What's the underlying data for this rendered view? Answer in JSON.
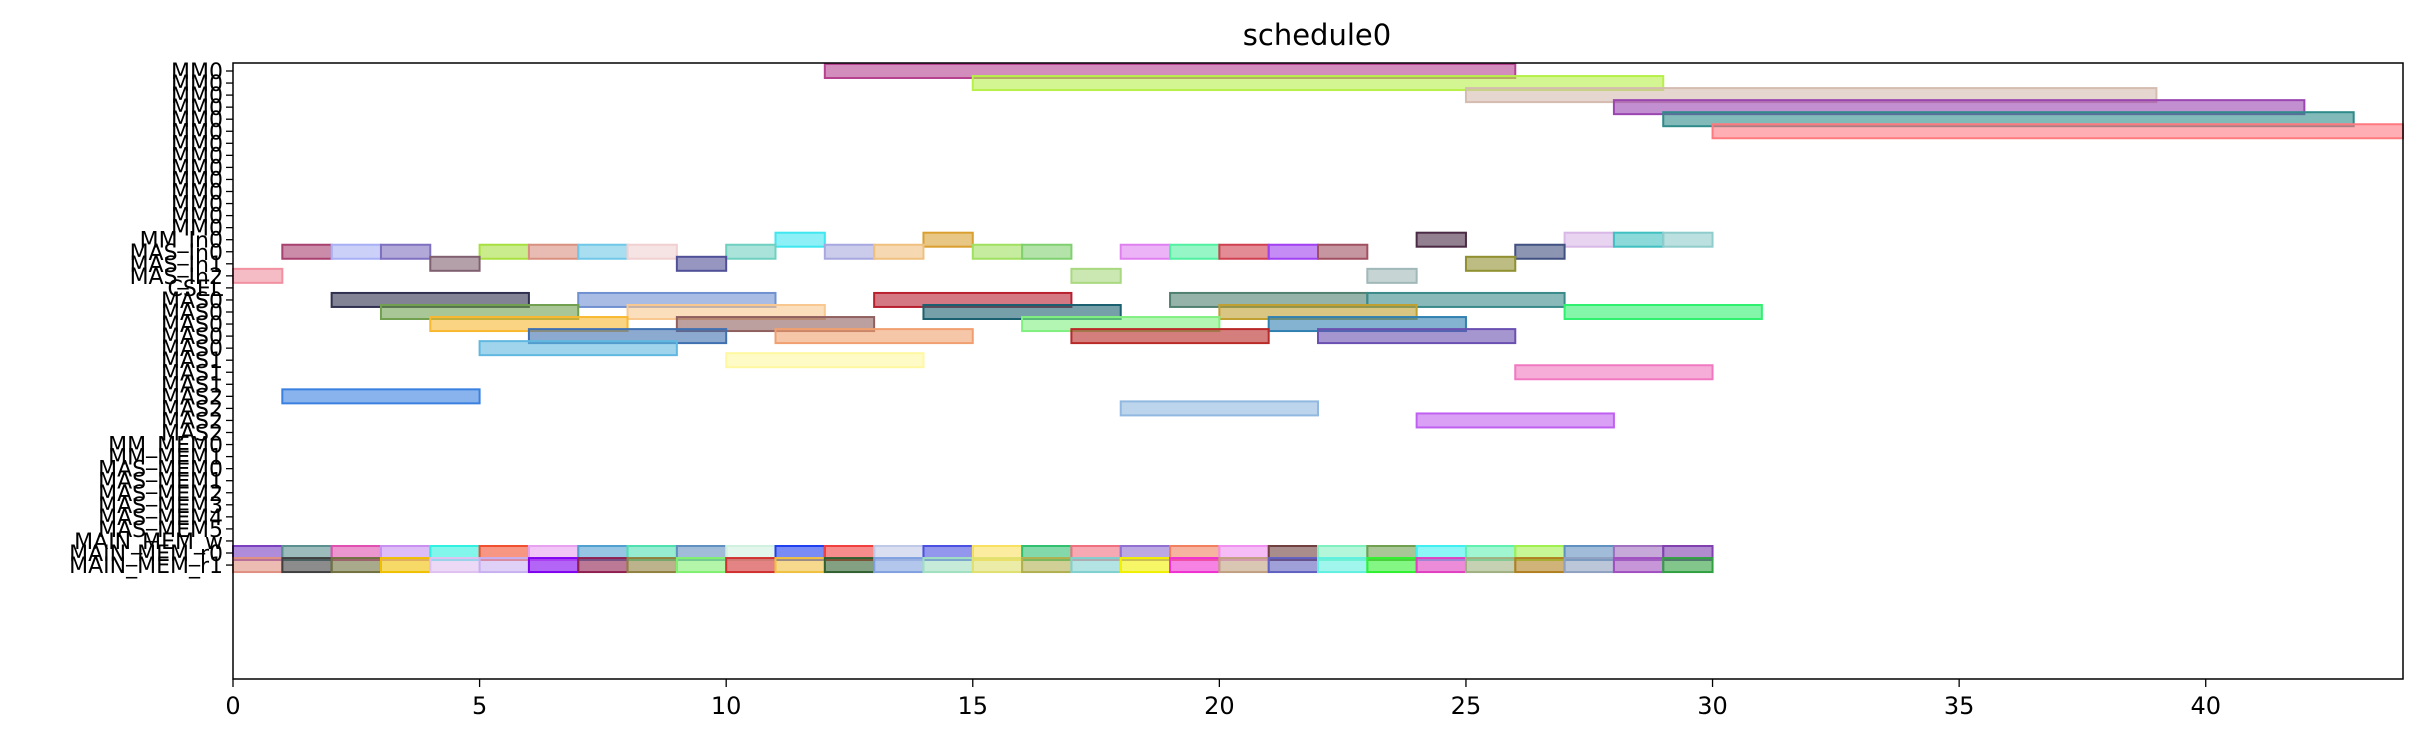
{
  "chart_data": {
    "type": "gantt",
    "title": "schedule0",
    "xlim": [
      0,
      44
    ],
    "xticks": [
      0,
      5,
      10,
      15,
      20,
      25,
      30,
      35,
      40
    ],
    "rows": [
      "MM0",
      "MM0",
      "MM0",
      "MM0",
      "MM0",
      "MM0",
      "MM0",
      "MM0",
      "MM0",
      "MM0",
      "MM0",
      "MM0",
      "MM0",
      "MM0",
      "MM_In0",
      "MAS_In0",
      "MAS_In1",
      "MAS_In2",
      "CSEL",
      "MAS0",
      "MAS0",
      "MAS0",
      "MAS0",
      "MAS0",
      "MAS1",
      "MAS1",
      "MAS1",
      "MAS2",
      "MAS2",
      "MAS2",
      "MAS2",
      "MM_MEM0",
      "MM_MEM1",
      "MAS_MEM0",
      "MAS_MEM1",
      "MAS_MEM2",
      "MAS_MEM3",
      "MAS_MEM4",
      "MAS_MEM5",
      "MAIN_MEM_w",
      "MAIN_MEM_r0",
      "MAIN_MEM_r1"
    ],
    "tasks": [
      {
        "row": 0,
        "start": 12,
        "end": 26,
        "color": "#b5418f"
      },
      {
        "row": 1,
        "start": 15,
        "end": 29,
        "color": "#b8f04a"
      },
      {
        "row": 2,
        "start": 25,
        "end": 39,
        "color": "#d4bcb0"
      },
      {
        "row": 3,
        "start": 28,
        "end": 42,
        "color": "#9a45b0"
      },
      {
        "row": 4,
        "start": 29,
        "end": 43,
        "color": "#2f8a8a"
      },
      {
        "row": 5,
        "start": 30,
        "end": 44,
        "color": "#ff7a80"
      },
      {
        "row": 14,
        "start": 11,
        "end": 12,
        "color": "#40e6f0"
      },
      {
        "row": 14,
        "start": 14,
        "end": 15,
        "color": "#d9a030"
      },
      {
        "row": 14,
        "start": 24,
        "end": 25,
        "color": "#4a2a45"
      },
      {
        "row": 14,
        "start": 27,
        "end": 28,
        "color": "#d8b8e6"
      },
      {
        "row": 14,
        "start": 28,
        "end": 29,
        "color": "#40c0c0"
      },
      {
        "row": 14,
        "start": 29,
        "end": 30,
        "color": "#90cccc"
      },
      {
        "row": 15,
        "start": 1,
        "end": 2,
        "color": "#a84070"
      },
      {
        "row": 15,
        "start": 2,
        "end": 3,
        "color": "#a8b0f5"
      },
      {
        "row": 15,
        "start": 3,
        "end": 4,
        "color": "#8070c0"
      },
      {
        "row": 15,
        "start": 5,
        "end": 6,
        "color": "#a8e040"
      },
      {
        "row": 15,
        "start": 6,
        "end": 7,
        "color": "#d89080"
      },
      {
        "row": 15,
        "start": 7,
        "end": 8,
        "color": "#70c8e8"
      },
      {
        "row": 15,
        "start": 8,
        "end": 9,
        "color": "#f0d0d0"
      },
      {
        "row": 15,
        "start": 10,
        "end": 11,
        "color": "#70d0c0"
      },
      {
        "row": 15,
        "start": 12,
        "end": 13,
        "color": "#a8a8e0"
      },
      {
        "row": 15,
        "start": 13,
        "end": 14,
        "color": "#f0c080"
      },
      {
        "row": 15,
        "start": 15,
        "end": 16,
        "color": "#a0e060"
      },
      {
        "row": 15,
        "start": 16,
        "end": 17,
        "color": "#80d070"
      },
      {
        "row": 15,
        "start": 18,
        "end": 19,
        "color": "#e080f0"
      },
      {
        "row": 15,
        "start": 19,
        "end": 20,
        "color": "#50f0a0"
      },
      {
        "row": 15,
        "start": 20,
        "end": 21,
        "color": "#d04050"
      },
      {
        "row": 15,
        "start": 21,
        "end": 22,
        "color": "#a040f0"
      },
      {
        "row": 15,
        "start": 22,
        "end": 23,
        "color": "#a05060"
      },
      {
        "row": 15,
        "start": 26,
        "end": 27,
        "color": "#405080"
      },
      {
        "row": 16,
        "start": 4,
        "end": 5,
        "color": "#806070"
      },
      {
        "row": 16,
        "start": 9,
        "end": 10,
        "color": "#505098"
      },
      {
        "row": 16,
        "start": 25,
        "end": 26,
        "color": "#909030"
      },
      {
        "row": 17,
        "start": 0,
        "end": 1,
        "color": "#f090a0"
      },
      {
        "row": 17,
        "start": 17,
        "end": 18,
        "color": "#a8d880"
      },
      {
        "row": 17,
        "start": 23,
        "end": 24,
        "color": "#a0b8b8"
      },
      {
        "row": 19,
        "start": 2,
        "end": 6,
        "color": "#303050"
      },
      {
        "row": 19,
        "start": 7,
        "end": 11,
        "color": "#7090d0"
      },
      {
        "row": 19,
        "start": 13,
        "end": 17,
        "color": "#b82030"
      },
      {
        "row": 19,
        "start": 19,
        "end": 23,
        "color": "#508070"
      },
      {
        "row": 19,
        "start": 23,
        "end": 27,
        "color": "#3a8a8a"
      },
      {
        "row": 20,
        "start": 3,
        "end": 7,
        "color": "#70a050"
      },
      {
        "row": 20,
        "start": 8,
        "end": 12,
        "color": "#f8c890"
      },
      {
        "row": 20,
        "start": 14,
        "end": 18,
        "color": "#1a6070"
      },
      {
        "row": 20,
        "start": 20,
        "end": 24,
        "color": "#c0a030"
      },
      {
        "row": 20,
        "start": 27,
        "end": 31,
        "color": "#30f070"
      },
      {
        "row": 21,
        "start": 4,
        "end": 8,
        "color": "#f8b830"
      },
      {
        "row": 21,
        "start": 9,
        "end": 13,
        "color": "#906060"
      },
      {
        "row": 21,
        "start": 16,
        "end": 20,
        "color": "#80f080"
      },
      {
        "row": 21,
        "start": 21,
        "end": 25,
        "color": "#3080b0"
      },
      {
        "row": 22,
        "start": 6,
        "end": 10,
        "color": "#4070b0"
      },
      {
        "row": 22,
        "start": 11,
        "end": 15,
        "color": "#f0a070"
      },
      {
        "row": 22,
        "start": 17,
        "end": 21,
        "color": "#b82a28"
      },
      {
        "row": 22,
        "start": 22,
        "end": 26,
        "color": "#6a50b0"
      },
      {
        "row": 23,
        "start": 5,
        "end": 9,
        "color": "#60b8e0"
      },
      {
        "row": 24,
        "start": 10,
        "end": 14,
        "color": "#fff8a0"
      },
      {
        "row": 25,
        "start": 26,
        "end": 30,
        "color": "#f078c0"
      },
      {
        "row": 27,
        "start": 1,
        "end": 5,
        "color": "#3a80e0"
      },
      {
        "row": 28,
        "start": 18,
        "end": 22,
        "color": "#90b8e0"
      },
      {
        "row": 29,
        "start": 24,
        "end": 28,
        "color": "#c060f0"
      },
      {
        "row": 40,
        "start": 0,
        "end": 1,
        "color": "#7a40c0"
      },
      {
        "row": 40,
        "start": 1,
        "end": 2,
        "color": "#5a9090"
      },
      {
        "row": 40,
        "start": 2,
        "end": 3,
        "color": "#e050b0"
      },
      {
        "row": 40,
        "start": 3,
        "end": 4,
        "color": "#c890f0"
      },
      {
        "row": 40,
        "start": 4,
        "end": 5,
        "color": "#30f0e0"
      },
      {
        "row": 40,
        "start": 5,
        "end": 6,
        "color": "#f05030"
      },
      {
        "row": 40,
        "start": 6,
        "end": 7,
        "color": "#e8a0f0"
      },
      {
        "row": 40,
        "start": 7,
        "end": 8,
        "color": "#50a0d0"
      },
      {
        "row": 40,
        "start": 8,
        "end": 9,
        "color": "#50e0b0"
      },
      {
        "row": 40,
        "start": 9,
        "end": 10,
        "color": "#6090c0"
      },
      {
        "row": 40,
        "start": 10,
        "end": 11,
        "color": "#d0f0e0"
      },
      {
        "row": 40,
        "start": 11,
        "end": 12,
        "color": "#2040f0"
      },
      {
        "row": 40,
        "start": 12,
        "end": 13,
        "color": "#f04040"
      },
      {
        "row": 40,
        "start": 13,
        "end": 14,
        "color": "#c0c8e8"
      },
      {
        "row": 40,
        "start": 14,
        "end": 15,
        "color": "#4a50e0"
      },
      {
        "row": 40,
        "start": 15,
        "end": 16,
        "color": "#f8e060"
      },
      {
        "row": 40,
        "start": 16,
        "end": 17,
        "color": "#30c070"
      },
      {
        "row": 40,
        "start": 17,
        "end": 18,
        "color": "#f07080"
      },
      {
        "row": 40,
        "start": 18,
        "end": 19,
        "color": "#9070d0"
      },
      {
        "row": 40,
        "start": 19,
        "end": 20,
        "color": "#f08060"
      },
      {
        "row": 40,
        "start": 20,
        "end": 21,
        "color": "#f090f0"
      },
      {
        "row": 40,
        "start": 21,
        "end": 22,
        "color": "#704040"
      },
      {
        "row": 40,
        "start": 22,
        "end": 23,
        "color": "#80f0c0"
      },
      {
        "row": 40,
        "start": 23,
        "end": 24,
        "color": "#70a050"
      },
      {
        "row": 40,
        "start": 24,
        "end": 25,
        "color": "#40f0f0"
      },
      {
        "row": 40,
        "start": 25,
        "end": 26,
        "color": "#60f0b0"
      },
      {
        "row": 40,
        "start": 26,
        "end": 27,
        "color": "#a0f050"
      },
      {
        "row": 40,
        "start": 27,
        "end": 28,
        "color": "#6090c0"
      },
      {
        "row": 40,
        "start": 28,
        "end": 29,
        "color": "#a070c0"
      },
      {
        "row": 40,
        "start": 29,
        "end": 30,
        "color": "#8040b0"
      },
      {
        "row": 41,
        "start": 0,
        "end": 1,
        "color": "#e09080"
      },
      {
        "row": 41,
        "start": 1,
        "end": 2,
        "color": "#404040"
      },
      {
        "row": 41,
        "start": 2,
        "end": 3,
        "color": "#707040"
      },
      {
        "row": 41,
        "start": 3,
        "end": 4,
        "color": "#f0c000"
      },
      {
        "row": 41,
        "start": 4,
        "end": 5,
        "color": "#e0c0f0"
      },
      {
        "row": 41,
        "start": 5,
        "end": 6,
        "color": "#c8b0f0"
      },
      {
        "row": 41,
        "start": 6,
        "end": 7,
        "color": "#8000f0"
      },
      {
        "row": 41,
        "start": 7,
        "end": 8,
        "color": "#902050"
      },
      {
        "row": 41,
        "start": 8,
        "end": 9,
        "color": "#908040"
      },
      {
        "row": 41,
        "start": 9,
        "end": 10,
        "color": "#80f070"
      },
      {
        "row": 41,
        "start": 10,
        "end": 11,
        "color": "#d03030"
      },
      {
        "row": 41,
        "start": 11,
        "end": 12,
        "color": "#f0c040"
      },
      {
        "row": 41,
        "start": 12,
        "end": 13,
        "color": "#306030"
      },
      {
        "row": 41,
        "start": 13,
        "end": 14,
        "color": "#80a0e0"
      },
      {
        "row": 41,
        "start": 14,
        "end": 15,
        "color": "#a0e0c0"
      },
      {
        "row": 41,
        "start": 15,
        "end": 16,
        "color": "#e0e070"
      },
      {
        "row": 41,
        "start": 16,
        "end": 17,
        "color": "#b0b050"
      },
      {
        "row": 41,
        "start": 17,
        "end": 18,
        "color": "#80d0d0"
      },
      {
        "row": 41,
        "start": 18,
        "end": 19,
        "color": "#f0f000"
      },
      {
        "row": 41,
        "start": 19,
        "end": 20,
        "color": "#f030d0"
      },
      {
        "row": 41,
        "start": 20,
        "end": 21,
        "color": "#c0a080"
      },
      {
        "row": 41,
        "start": 21,
        "end": 22,
        "color": "#6060c0"
      },
      {
        "row": 41,
        "start": 22,
        "end": 23,
        "color": "#60f0e0"
      },
      {
        "row": 41,
        "start": 23,
        "end": 24,
        "color": "#30f030"
      },
      {
        "row": 41,
        "start": 24,
        "end": 25,
        "color": "#e040c0"
      },
      {
        "row": 41,
        "start": 25,
        "end": 26,
        "color": "#a0b080"
      },
      {
        "row": 41,
        "start": 26,
        "end": 27,
        "color": "#b08020"
      },
      {
        "row": 41,
        "start": 27,
        "end": 28,
        "color": "#90a0c0"
      },
      {
        "row": 41,
        "start": 28,
        "end": 29,
        "color": "#a050c0"
      },
      {
        "row": 41,
        "start": 29,
        "end": 30,
        "color": "#30a040"
      }
    ]
  }
}
